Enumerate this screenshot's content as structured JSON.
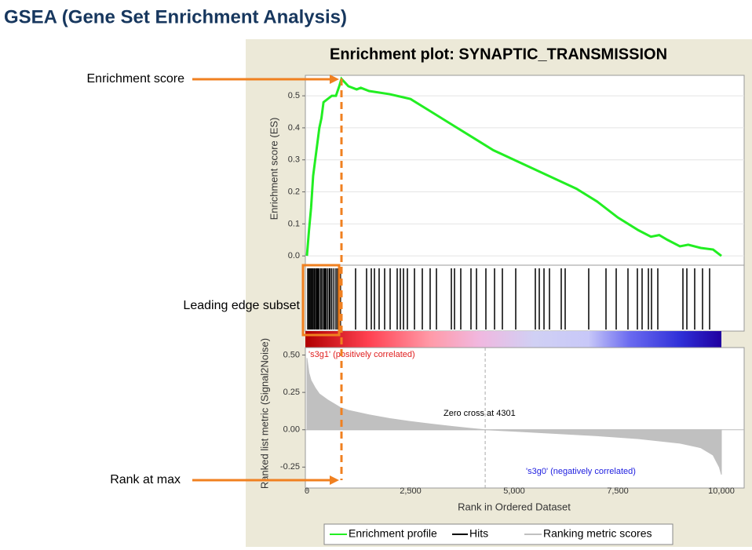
{
  "title": "GSEA (Gene Set Enrichment Analysis)",
  "annotations": [
    "Enrichment score",
    "Leading edge subset",
    "Rank at max"
  ],
  "chart_data": [
    {
      "type": "line",
      "title": "Enrichment plot: SYNAPTIC_TRANSMISSION",
      "y_label": "Enrichment score (ES)",
      "xlim": [
        0,
        10000
      ],
      "ylim": [
        -0.029,
        0.564
      ],
      "yticks": [
        {
          "value": 0,
          "label": "0.0"
        },
        0.1,
        0.2,
        0.3,
        0.4,
        0.5
      ],
      "grid": true,
      "series": [
        {
          "name": "Enrichment profile",
          "color": "#22ee22",
          "x": [
            0,
            50,
            100,
            150,
            200,
            250,
            300,
            350,
            400,
            500,
            600,
            700,
            780,
            833,
            1000,
            1200,
            1300,
            1500,
            2000,
            2500,
            3000,
            3500,
            4000,
            4500,
            5000,
            5500,
            6000,
            6500,
            7000,
            7500,
            8000,
            8300,
            8500,
            8700,
            9000,
            9200,
            9500,
            9800,
            10000
          ],
          "values": [
            0,
            0.08,
            0.15,
            0.25,
            0.3,
            0.35,
            0.4,
            0.43,
            0.48,
            0.49,
            0.5,
            0.5,
            0.53,
            0.553,
            0.53,
            0.52,
            0.525,
            0.515,
            0.505,
            0.49,
            0.45,
            0.41,
            0.37,
            0.33,
            0.3,
            0.27,
            0.24,
            0.21,
            0.17,
            0.12,
            0.08,
            0.06,
            0.065,
            0.05,
            0.03,
            0.035,
            0.025,
            0.02,
            0
          ]
        }
      ]
    },
    {
      "type": "rug",
      "xlim": [
        0,
        10000
      ],
      "series": [
        {
          "name": "Hits",
          "color": "#000000",
          "x": [
            20,
            40,
            70,
            100,
            130,
            150,
            180,
            210,
            240,
            260,
            290,
            330,
            360,
            400,
            430,
            460,
            500,
            540,
            560,
            600,
            650,
            700,
            740,
            780,
            810,
            1174,
            1439,
            1553,
            1629,
            1742,
            1875,
            2008,
            2178,
            2254,
            2330,
            2424,
            2595,
            2784,
            2973,
            3125,
            3485,
            3561,
            3712,
            3958,
            4091,
            4318,
            4527,
            4716,
            5038,
            5511,
            5606,
            5720,
            5852,
            6136,
            6231,
            6799,
            7216,
            7462,
            7746,
            7973,
            8087,
            8239,
            8314,
            8466,
            9072,
            9167,
            9356,
            9545,
            9716
          ]
        }
      ]
    },
    {
      "type": "area",
      "x_label": "Rank in Ordered Dataset",
      "y_label": "Ranked list metric (Signal2Noise)",
      "xlim": [
        0,
        10000
      ],
      "ylim": [
        -0.39,
        0.55
      ],
      "xticks": [
        0,
        {
          "value": 2500,
          "label": "2,500"
        },
        {
          "value": 5000,
          "label": "5,000"
        },
        {
          "value": 7500,
          "label": "7,500"
        },
        {
          "value": 10000,
          "label": "10,000"
        }
      ],
      "yticks": [
        {
          "value": 0.5,
          "label": "0.50"
        },
        {
          "value": 0.25,
          "label": "0.25"
        },
        {
          "value": 0,
          "label": "0.00"
        },
        {
          "value": -0.25,
          "label": "-0.25"
        }
      ],
      "zero_cross": 4301,
      "annotations": [
        "'s3g1' (positively correlated)",
        "Zero cross at 4301",
        "'s3g0' (negatively correlated)"
      ],
      "series": [
        {
          "name": "Ranking metric scores",
          "color": "#c0c0c0",
          "x": [
            0,
            50,
            100,
            200,
            300,
            500,
            800,
            1000,
            1500,
            2000,
            2500,
            3000,
            3500,
            4000,
            4301,
            5000,
            6000,
            7000,
            8000,
            9000,
            9500,
            9800,
            9950,
            10000
          ],
          "values": [
            0.48,
            0.38,
            0.33,
            0.28,
            0.24,
            0.2,
            0.15,
            0.13,
            0.1,
            0.075,
            0.055,
            0.038,
            0.022,
            0.008,
            0,
            -0.01,
            -0.025,
            -0.04,
            -0.06,
            -0.09,
            -0.12,
            -0.17,
            -0.25,
            -0.3
          ]
        }
      ]
    }
  ]
}
